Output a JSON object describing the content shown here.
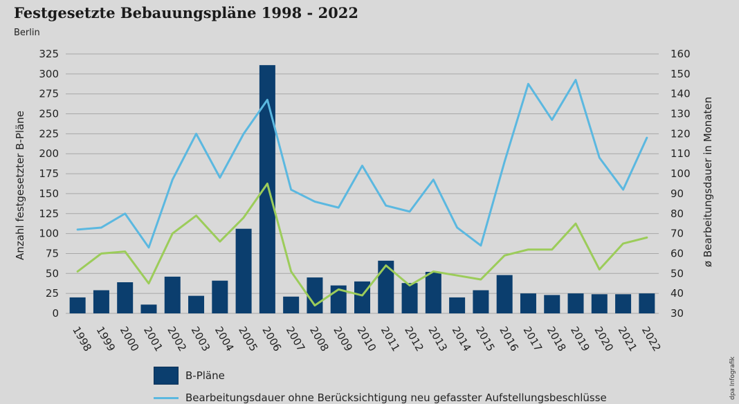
{
  "header": {
    "title": "Festgesetzte Bebauungspläne 1998 - 2022",
    "subtitle": "Berlin"
  },
  "colors": {
    "bar": "#0b3e6e",
    "line_blue": "#5bb8e0",
    "line_green": "#9ccc5a",
    "grid": "#a8a8a8"
  },
  "chart_data": {
    "type": "bar",
    "categories": [
      "1998",
      "1999",
      "2000",
      "2001",
      "2002",
      "2003",
      "2004",
      "2005",
      "2006",
      "2007",
      "2008",
      "2009",
      "2010",
      "2011",
      "2012",
      "2013",
      "2014",
      "2015",
      "2016",
      "2017",
      "2018",
      "2019",
      "2020",
      "2021",
      "2022"
    ],
    "ylabel": "Anzahl festgesetzter B-Pläne",
    "y2label": "ø Bearbeitungsdauer in Monaten",
    "ylim": [
      0,
      325
    ],
    "yticks": [
      0,
      25,
      50,
      75,
      100,
      125,
      150,
      175,
      200,
      225,
      250,
      275,
      300,
      325
    ],
    "y2lim": [
      30,
      160
    ],
    "y2ticks": [
      30,
      40,
      50,
      60,
      70,
      80,
      90,
      100,
      110,
      120,
      130,
      140,
      150,
      160
    ],
    "grid": true,
    "legend_position": "bottom",
    "series": [
      {
        "name": "B-Pläne",
        "type": "bar",
        "axis": "left",
        "values": [
          20,
          29,
          39,
          11,
          46,
          22,
          41,
          106,
          311,
          21,
          45,
          35,
          40,
          66,
          38,
          52,
          20,
          29,
          48,
          25,
          23,
          25,
          24,
          24,
          25
        ]
      },
      {
        "name": "Bearbeitungsdauer ohne Berücksichtigung neu gefasster Aufstellungsbeschlüsse",
        "type": "line",
        "axis": "right",
        "color": "#5bb8e0",
        "values": [
          72,
          73,
          80,
          63,
          97,
          120,
          98,
          120,
          137,
          92,
          86,
          83,
          104,
          84,
          81,
          97,
          73,
          64,
          106,
          145,
          127,
          147,
          108,
          92,
          118
        ]
      },
      {
        "name": "",
        "type": "line",
        "axis": "right",
        "color": "#9ccc5a",
        "values": [
          51,
          60,
          61,
          45,
          70,
          79,
          66,
          78,
          95,
          51,
          34,
          42,
          39,
          54,
          44,
          51,
          49,
          47,
          59,
          62,
          62,
          75,
          52,
          65,
          68
        ]
      }
    ]
  },
  "legend": {
    "bar_label": "B-Pläne",
    "line_label": "Bearbeitungsdauer ohne Berücksichtigung neu gefasster Aufstellungsbeschlüsse"
  },
  "credit": "dpa Infografik"
}
